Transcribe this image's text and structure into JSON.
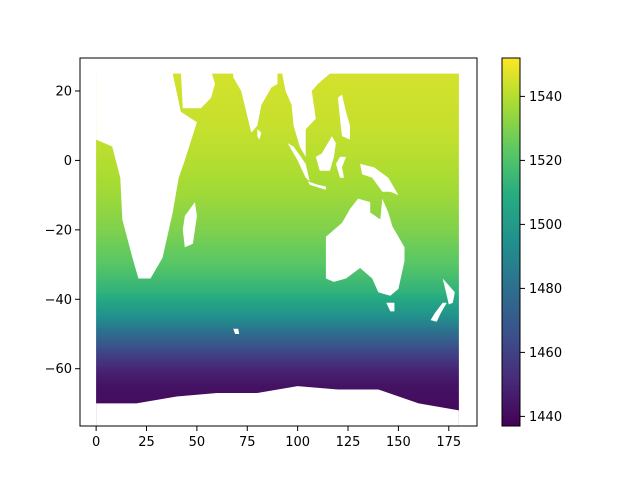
{
  "chart_data": {
    "type": "heatmap",
    "title": "",
    "xlabel": "",
    "ylabel": "",
    "xlim": [
      -8,
      189
    ],
    "ylim": [
      -76.5,
      29.5
    ],
    "x_ticks": [
      0,
      25,
      50,
      75,
      100,
      125,
      150,
      175
    ],
    "x_tick_labels": [
      "0",
      "25",
      "50",
      "75",
      "100",
      "125",
      "150",
      "175"
    ],
    "y_ticks": [
      20,
      0,
      -20,
      -40,
      -60
    ],
    "y_tick_labels": [
      "20",
      "0",
      "−20",
      "−40",
      "−60"
    ],
    "grid": false,
    "colormap": "viridis",
    "colorbar": {
      "min": 1437,
      "max": 1552,
      "ticks": [
        1540,
        1520,
        1500,
        1480,
        1460,
        1440
      ],
      "tick_labels": [
        "1540",
        "1520",
        "1500",
        "1480",
        "1460",
        "1440"
      ]
    },
    "field": {
      "quantity_trend": "values increase from south to north",
      "by_latitude": [
        {
          "lat": 25,
          "value": 1545
        },
        {
          "lat": 10,
          "value": 1543
        },
        {
          "lat": 0,
          "value": 1540
        },
        {
          "lat": -10,
          "value": 1536
        },
        {
          "lat": -20,
          "value": 1530
        },
        {
          "lat": -30,
          "value": 1522
        },
        {
          "lat": -38,
          "value": 1512
        },
        {
          "lat": -45,
          "value": 1495
        },
        {
          "lat": -50,
          "value": 1478
        },
        {
          "lat": -55,
          "value": 1462
        },
        {
          "lat": -60,
          "value": 1450
        },
        {
          "lat": -65,
          "value": 1443
        },
        {
          "lat": -72,
          "value": 1440
        }
      ],
      "land_masks": [
        {
          "name": "Africa",
          "points": [
            [
              0,
              6
            ],
            [
              8,
              4
            ],
            [
              12,
              -5
            ],
            [
              13,
              -17
            ],
            [
              18,
              -28
            ],
            [
              21,
              -34
            ],
            [
              27,
              -34
            ],
            [
              33,
              -28
            ],
            [
              38,
              -15
            ],
            [
              41,
              -5
            ],
            [
              44,
              0
            ],
            [
              50,
              11
            ],
            [
              42,
              14
            ],
            [
              38,
              25
            ],
            [
              28,
              26
            ],
            [
              10,
              26
            ],
            [
              0,
              26
            ]
          ]
        },
        {
          "name": "Madagascar",
          "points": [
            [
              44,
              -16
            ],
            [
              49,
              -12
            ],
            [
              50,
              -16
            ],
            [
              48,
              -24
            ],
            [
              44,
              -25
            ],
            [
              43,
              -20
            ]
          ]
        },
        {
          "name": "Arabian Peninsula",
          "points": [
            [
              42,
              26
            ],
            [
              43,
              15
            ],
            [
              52,
              15
            ],
            [
              57,
              18
            ],
            [
              59,
              22
            ],
            [
              57,
              26
            ]
          ]
        },
        {
          "name": "Indian Subcontinent",
          "points": [
            [
              68,
              24
            ],
            [
              72,
              20
            ],
            [
              77,
              8
            ],
            [
              80,
              10
            ],
            [
              82,
              16
            ],
            [
              87,
              21
            ],
            [
              90,
              22
            ],
            [
              90,
              26
            ],
            [
              68,
              26
            ]
          ]
        },
        {
          "name": "Sri Lanka",
          "points": [
            [
              80,
              9
            ],
            [
              82,
              8
            ],
            [
              81,
              6
            ],
            [
              80,
              7
            ]
          ]
        },
        {
          "name": "Southeast Asia",
          "points": [
            [
              92,
              26
            ],
            [
              94,
              20
            ],
            [
              97,
              16
            ],
            [
              98,
              10
            ],
            [
              101,
              4
            ],
            [
              104,
              1
            ],
            [
              104,
              9
            ],
            [
              109,
              12
            ],
            [
              107,
              20
            ],
            [
              110,
              22
            ],
            [
              118,
              26
            ]
          ]
        },
        {
          "name": "Sumatra",
          "points": [
            [
              95,
              5
            ],
            [
              98,
              4
            ],
            [
              104,
              -1
            ],
            [
              106,
              -6
            ],
            [
              104,
              -5
            ],
            [
              100,
              0
            ]
          ]
        },
        {
          "name": "Borneo",
          "points": [
            [
              109,
              1
            ],
            [
              112,
              2
            ],
            [
              117,
              7
            ],
            [
              119,
              5
            ],
            [
              118,
              1
            ],
            [
              116,
              -3
            ],
            [
              111,
              -3
            ]
          ]
        },
        {
          "name": "Java",
          "points": [
            [
              105,
              -6
            ],
            [
              110,
              -7
            ],
            [
              114,
              -7.5
            ],
            [
              114,
              -8.5
            ],
            [
              106,
              -7
            ]
          ]
        },
        {
          "name": "Sulawesi",
          "points": [
            [
              119,
              -1
            ],
            [
              121,
              1
            ],
            [
              124,
              1
            ],
            [
              122,
              -2
            ],
            [
              123,
              -5
            ],
            [
              121,
              -5
            ]
          ]
        },
        {
          "name": "Philippines",
          "points": [
            [
              120,
              18
            ],
            [
              122,
              19
            ],
            [
              124,
              14
            ],
            [
              126,
              10
            ],
            [
              126,
              6
            ],
            [
              122,
              7
            ],
            [
              121,
              12
            ]
          ]
        },
        {
          "name": "New Guinea",
          "points": [
            [
              131,
              -1
            ],
            [
              138,
              -2
            ],
            [
              145,
              -5
            ],
            [
              150,
              -10
            ],
            [
              146,
              -9
            ],
            [
              142,
              -9
            ],
            [
              137,
              -5
            ],
            [
              132,
              -4
            ]
          ]
        },
        {
          "name": "Australia",
          "points": [
            [
              114,
              -22
            ],
            [
              114,
              -34
            ],
            [
              118,
              -35
            ],
            [
              124,
              -34
            ],
            [
              131,
              -31
            ],
            [
              137,
              -34
            ],
            [
              140,
              -38
            ],
            [
              146,
              -39
            ],
            [
              150,
              -37
            ],
            [
              153,
              -29
            ],
            [
              153,
              -25
            ],
            [
              147,
              -19
            ],
            [
              145,
              -15
            ],
            [
              142,
              -11
            ],
            [
              141,
              -17
            ],
            [
              136,
              -15
            ],
            [
              136,
              -12
            ],
            [
              130,
              -11
            ],
            [
              126,
              -14
            ],
            [
              122,
              -18
            ]
          ]
        },
        {
          "name": "Tasmania",
          "points": [
            [
              144,
              -41
            ],
            [
              148,
              -41
            ],
            [
              148,
              -43.5
            ],
            [
              146,
              -43.5
            ]
          ]
        },
        {
          "name": "New Zealand North Island",
          "points": [
            [
              172,
              -34
            ],
            [
              175,
              -36
            ],
            [
              178,
              -38
            ],
            [
              177,
              -41
            ],
            [
              175,
              -41.5
            ],
            [
              174,
              -39
            ]
          ]
        },
        {
          "name": "New Zealand South Island",
          "points": [
            [
              172,
              -41
            ],
            [
              174,
              -41
            ],
            [
              171,
              -44
            ],
            [
              169,
              -46.5
            ],
            [
              166,
              -46
            ],
            [
              168,
              -44
            ]
          ]
        },
        {
          "name": "Kerguelen Islands",
          "points": [
            [
              68,
              -48.5
            ],
            [
              70.5,
              -48.5
            ],
            [
              71,
              -50
            ],
            [
              69,
              -50
            ]
          ]
        },
        {
          "name": "Antarctica",
          "points": [
            [
              0,
              -70
            ],
            [
              20,
              -70
            ],
            [
              40,
              -68
            ],
            [
              60,
              -67
            ],
            [
              80,
              -67
            ],
            [
              100,
              -65
            ],
            [
              120,
              -66
            ],
            [
              140,
              -66
            ],
            [
              160,
              -70
            ],
            [
              180,
              -72
            ],
            [
              180,
              -77
            ],
            [
              0,
              -77
            ]
          ]
        }
      ]
    }
  }
}
